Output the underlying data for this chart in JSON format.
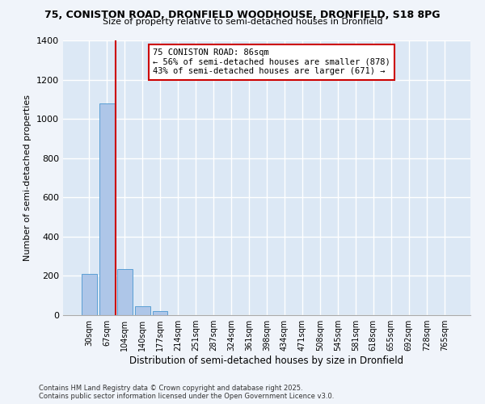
{
  "title_line1": "75, CONISTON ROAD, DRONFIELD WOODHOUSE, DRONFIELD, S18 8PG",
  "title_line2": "Size of property relative to semi-detached houses in Dronfield",
  "xlabel": "Distribution of semi-detached houses by size in Dronfield",
  "ylabel": "Number of semi-detached properties",
  "categories": [
    "30sqm",
    "67sqm",
    "104sqm",
    "140sqm",
    "177sqm",
    "214sqm",
    "251sqm",
    "287sqm",
    "324sqm",
    "361sqm",
    "398sqm",
    "434sqm",
    "471sqm",
    "508sqm",
    "545sqm",
    "581sqm",
    "618sqm",
    "655sqm",
    "692sqm",
    "728sqm",
    "765sqm"
  ],
  "values": [
    210,
    1080,
    235,
    45,
    20,
    0,
    0,
    0,
    0,
    0,
    0,
    0,
    0,
    0,
    0,
    0,
    0,
    0,
    0,
    0,
    0
  ],
  "bar_color": "#aec6e8",
  "bar_edge_color": "#5a9fd4",
  "property_line_x": 1.5,
  "annotation_title": "75 CONISTON ROAD: 86sqm",
  "annotation_line2": "← 56% of semi-detached houses are smaller (878)",
  "annotation_line3": "43% of semi-detached houses are larger (671) →",
  "annotation_box_color": "#ffffff",
  "annotation_border_color": "#cc0000",
  "vline_color": "#cc0000",
  "ylim": [
    0,
    1400
  ],
  "yticks": [
    0,
    200,
    400,
    600,
    800,
    1000,
    1200,
    1400
  ],
  "background_color": "#dce8f5",
  "grid_color": "#ffffff",
  "fig_background_color": "#f0f4fa",
  "footer_line1": "Contains HM Land Registry data © Crown copyright and database right 2025.",
  "footer_line2": "Contains public sector information licensed under the Open Government Licence v3.0."
}
